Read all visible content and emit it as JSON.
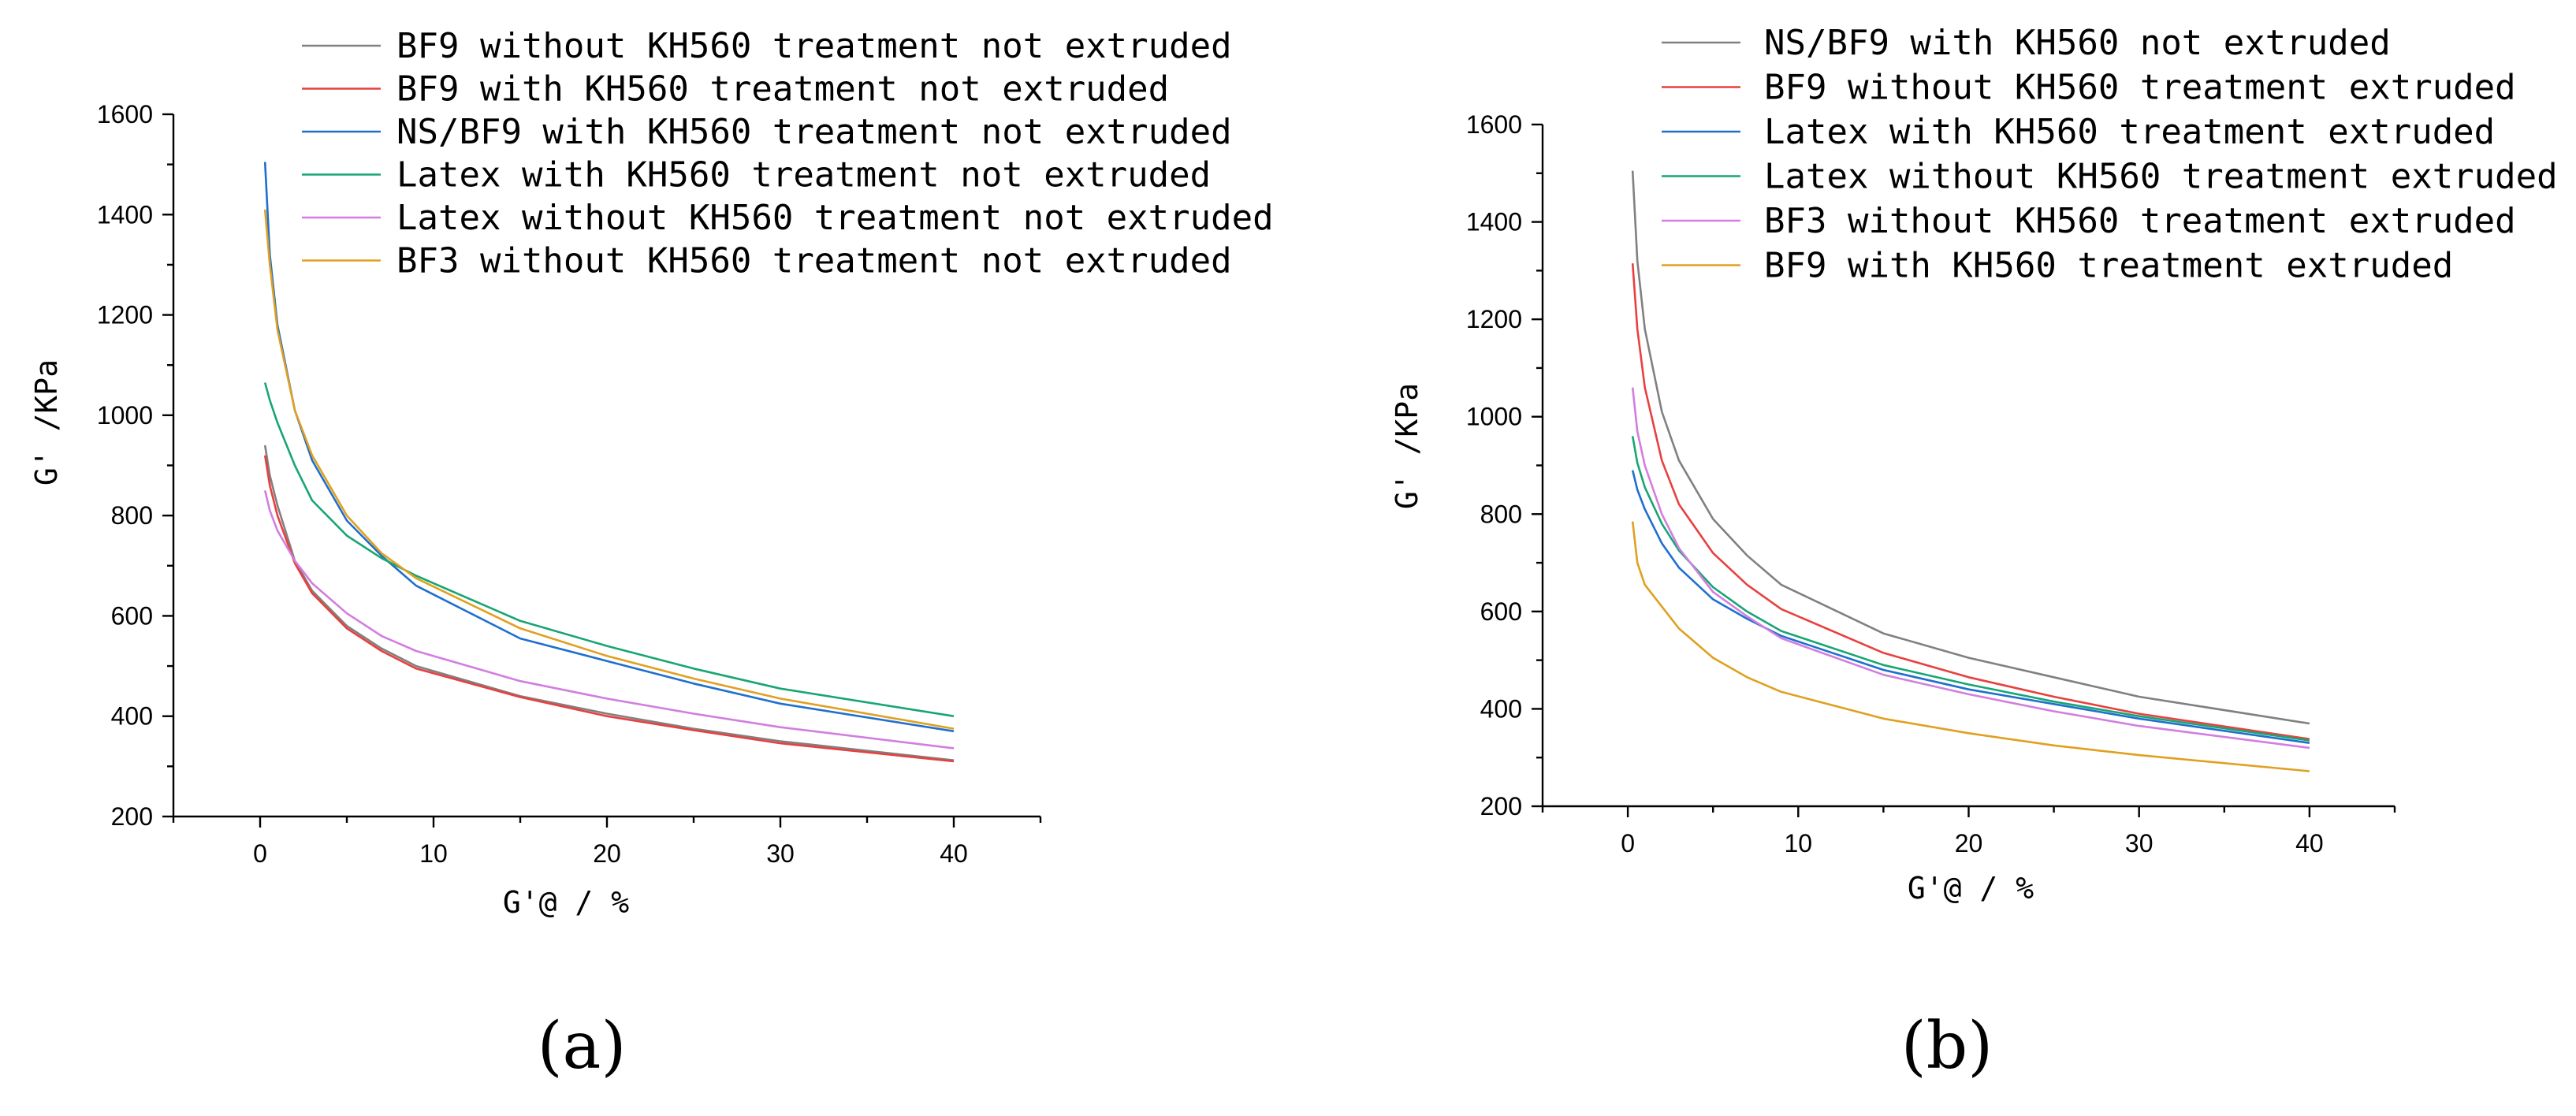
{
  "chart_data": [
    {
      "type": "line",
      "panel_label": "(a)",
      "xlabel": "G'@ / %",
      "ylabel": "G' /KPa",
      "xlim": [
        -5,
        45
      ],
      "ylim": [
        200,
        1600
      ],
      "xticks": [
        0,
        10,
        20,
        30,
        40
      ],
      "yticks": [
        200,
        400,
        600,
        800,
        1000,
        1200,
        1400,
        1600
      ],
      "legend_position": "top-right",
      "x": [
        0.28,
        0.56,
        1,
        2,
        3,
        5,
        7,
        9,
        15,
        20,
        25,
        30,
        40
      ],
      "series": [
        {
          "name": "BF9 without KH560 treatment not extruded",
          "color": "#808080",
          "values": [
            940,
            880,
            820,
            710,
            650,
            580,
            535,
            500,
            440,
            405,
            375,
            350,
            312
          ]
        },
        {
          "name": "BF9 with KH560 treatment not extruded",
          "color": "#e8403f",
          "values": [
            920,
            860,
            800,
            705,
            645,
            575,
            530,
            495,
            438,
            400,
            372,
            346,
            310
          ]
        },
        {
          "name": "NS/BF9 with KH560 treatment not extruded",
          "color": "#1f6fcf",
          "values": [
            1505,
            1320,
            1180,
            1010,
            910,
            790,
            720,
            660,
            555,
            510,
            465,
            425,
            370
          ]
        },
        {
          "name": "Latex with KH560 treatment not extruded",
          "color": "#17a673",
          "values": [
            1065,
            1030,
            985,
            900,
            830,
            760,
            715,
            680,
            590,
            540,
            495,
            455,
            400
          ]
        },
        {
          "name": "Latex without KH560 treatment not extruded",
          "color": "#d27ee0",
          "values": [
            850,
            810,
            770,
            710,
            665,
            605,
            560,
            530,
            470,
            435,
            405,
            378,
            336
          ]
        },
        {
          "name": "BF3 without KH560 treatment not extruded",
          "color": "#e0a020",
          "values": [
            1410,
            1300,
            1170,
            1010,
            920,
            800,
            725,
            675,
            575,
            520,
            475,
            435,
            375
          ]
        }
      ]
    },
    {
      "type": "line",
      "panel_label": "(b)",
      "xlabel": "G'@ / %",
      "ylabel": "G' /KPa",
      "xlim": [
        -5,
        45
      ],
      "ylim": [
        200,
        1600
      ],
      "xticks": [
        0,
        10,
        20,
        30,
        40
      ],
      "yticks": [
        200,
        400,
        600,
        800,
        1000,
        1200,
        1400,
        1600
      ],
      "legend_position": "top-right",
      "x": [
        0.28,
        0.56,
        1,
        2,
        3,
        5,
        7,
        9,
        15,
        20,
        25,
        30,
        40
      ],
      "series": [
        {
          "name": "NS/BF9 with KH560 not extruded",
          "color": "#808080",
          "values": [
            1505,
            1320,
            1180,
            1010,
            910,
            790,
            715,
            655,
            555,
            505,
            465,
            425,
            370
          ]
        },
        {
          "name": "BF9 without KH560 treatment extruded",
          "color": "#e8403f",
          "values": [
            1315,
            1180,
            1060,
            910,
            820,
            720,
            655,
            605,
            515,
            465,
            425,
            390,
            338
          ]
        },
        {
          "name": "Latex with KH560 treatment extruded",
          "color": "#1f6fcf",
          "values": [
            890,
            850,
            810,
            740,
            690,
            625,
            585,
            550,
            480,
            440,
            410,
            380,
            330
          ]
        },
        {
          "name": "Latex without KH560 treatment extruded",
          "color": "#17a673",
          "values": [
            960,
            905,
            855,
            780,
            725,
            650,
            600,
            560,
            490,
            450,
            415,
            385,
            335
          ]
        },
        {
          "name": "BF3 without KH560 treatment extruded",
          "color": "#d27ee0",
          "values": [
            1060,
            970,
            900,
            800,
            730,
            640,
            590,
            545,
            470,
            430,
            395,
            365,
            320
          ]
        },
        {
          "name": "BF9 with KH560 treatment extruded",
          "color": "#e0a020",
          "values": [
            785,
            700,
            655,
            610,
            565,
            505,
            465,
            435,
            380,
            350,
            325,
            305,
            272
          ]
        }
      ]
    }
  ]
}
